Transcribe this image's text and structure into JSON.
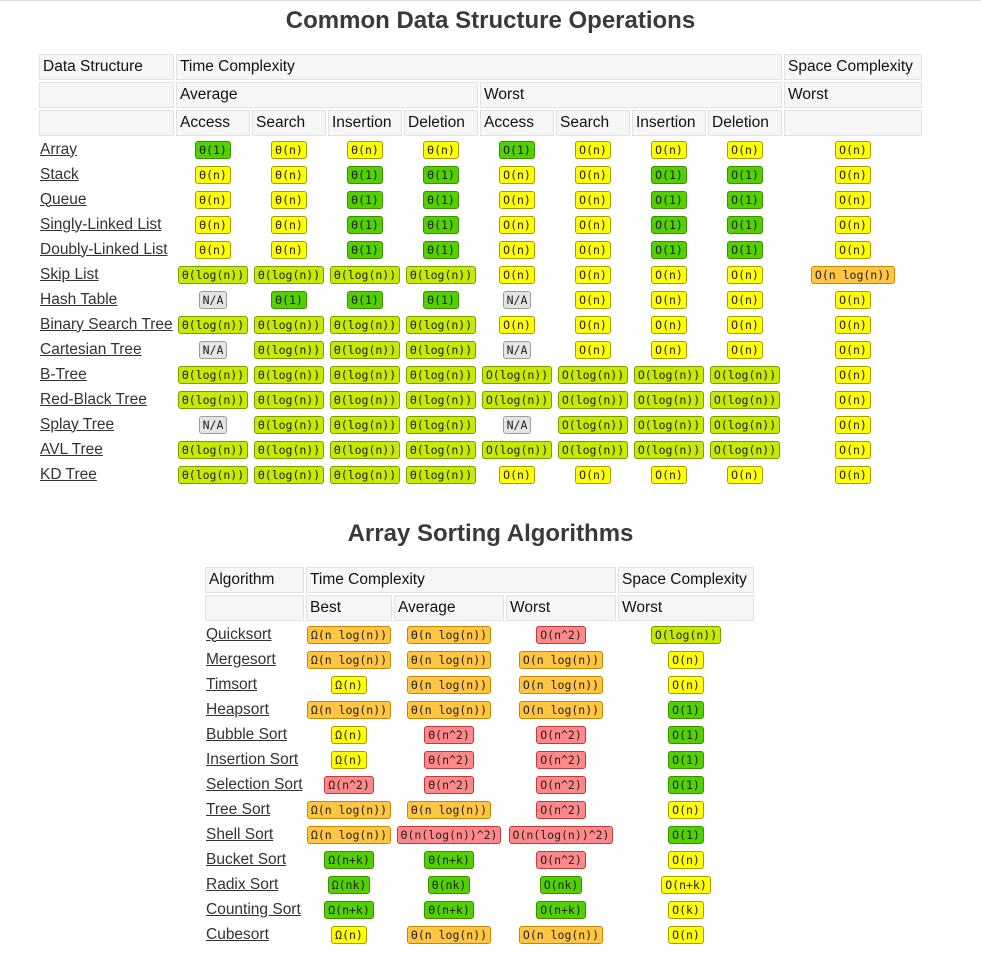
{
  "titles": {
    "ds": "Common Data Structure Operations",
    "sort": "Array Sorting Algorithms"
  },
  "colors": {
    "g": "#53d000",
    "lg": "#c8ea00",
    "y": "#ffff00",
    "o": "#ffc543",
    "r": "#ff8888",
    "gy": "#e4e4e4"
  },
  "ds_table": {
    "header1": [
      "Data Structure",
      "Time Complexity",
      "Space Complexity"
    ],
    "header2": [
      "",
      "Average",
      "Worst",
      "Worst"
    ],
    "header3": [
      "",
      "Access",
      "Search",
      "Insertion",
      "Deletion",
      "Access",
      "Search",
      "Insertion",
      "Deletion",
      ""
    ],
    "rows": [
      {
        "name": "Array",
        "cells": [
          [
            "Θ(1)",
            "g"
          ],
          [
            "Θ(n)",
            "y"
          ],
          [
            "Θ(n)",
            "y"
          ],
          [
            "Θ(n)",
            "y"
          ],
          [
            "O(1)",
            "g"
          ],
          [
            "O(n)",
            "y"
          ],
          [
            "O(n)",
            "y"
          ],
          [
            "O(n)",
            "y"
          ],
          [
            "O(n)",
            "y"
          ]
        ]
      },
      {
        "name": "Stack",
        "cells": [
          [
            "Θ(n)",
            "y"
          ],
          [
            "Θ(n)",
            "y"
          ],
          [
            "Θ(1)",
            "g"
          ],
          [
            "Θ(1)",
            "g"
          ],
          [
            "O(n)",
            "y"
          ],
          [
            "O(n)",
            "y"
          ],
          [
            "O(1)",
            "g"
          ],
          [
            "O(1)",
            "g"
          ],
          [
            "O(n)",
            "y"
          ]
        ]
      },
      {
        "name": "Queue",
        "cells": [
          [
            "Θ(n)",
            "y"
          ],
          [
            "Θ(n)",
            "y"
          ],
          [
            "Θ(1)",
            "g"
          ],
          [
            "Θ(1)",
            "g"
          ],
          [
            "O(n)",
            "y"
          ],
          [
            "O(n)",
            "y"
          ],
          [
            "O(1)",
            "g"
          ],
          [
            "O(1)",
            "g"
          ],
          [
            "O(n)",
            "y"
          ]
        ]
      },
      {
        "name": "Singly-Linked List",
        "cells": [
          [
            "Θ(n)",
            "y"
          ],
          [
            "Θ(n)",
            "y"
          ],
          [
            "Θ(1)",
            "g"
          ],
          [
            "Θ(1)",
            "g"
          ],
          [
            "O(n)",
            "y"
          ],
          [
            "O(n)",
            "y"
          ],
          [
            "O(1)",
            "g"
          ],
          [
            "O(1)",
            "g"
          ],
          [
            "O(n)",
            "y"
          ]
        ]
      },
      {
        "name": "Doubly-Linked List",
        "cells": [
          [
            "Θ(n)",
            "y"
          ],
          [
            "Θ(n)",
            "y"
          ],
          [
            "Θ(1)",
            "g"
          ],
          [
            "Θ(1)",
            "g"
          ],
          [
            "O(n)",
            "y"
          ],
          [
            "O(n)",
            "y"
          ],
          [
            "O(1)",
            "g"
          ],
          [
            "O(1)",
            "g"
          ],
          [
            "O(n)",
            "y"
          ]
        ]
      },
      {
        "name": "Skip List",
        "cells": [
          [
            "Θ(log(n))",
            "lg"
          ],
          [
            "Θ(log(n))",
            "lg"
          ],
          [
            "Θ(log(n))",
            "lg"
          ],
          [
            "Θ(log(n))",
            "lg"
          ],
          [
            "O(n)",
            "y"
          ],
          [
            "O(n)",
            "y"
          ],
          [
            "O(n)",
            "y"
          ],
          [
            "O(n)",
            "y"
          ],
          [
            "O(n log(n))",
            "o"
          ]
        ]
      },
      {
        "name": "Hash Table",
        "cells": [
          [
            "N/A",
            "gy"
          ],
          [
            "Θ(1)",
            "g"
          ],
          [
            "Θ(1)",
            "g"
          ],
          [
            "Θ(1)",
            "g"
          ],
          [
            "N/A",
            "gy"
          ],
          [
            "O(n)",
            "y"
          ],
          [
            "O(n)",
            "y"
          ],
          [
            "O(n)",
            "y"
          ],
          [
            "O(n)",
            "y"
          ]
        ]
      },
      {
        "name": "Binary Search Tree",
        "cells": [
          [
            "Θ(log(n))",
            "lg"
          ],
          [
            "Θ(log(n))",
            "lg"
          ],
          [
            "Θ(log(n))",
            "lg"
          ],
          [
            "Θ(log(n))",
            "lg"
          ],
          [
            "O(n)",
            "y"
          ],
          [
            "O(n)",
            "y"
          ],
          [
            "O(n)",
            "y"
          ],
          [
            "O(n)",
            "y"
          ],
          [
            "O(n)",
            "y"
          ]
        ]
      },
      {
        "name": "Cartesian Tree",
        "cells": [
          [
            "N/A",
            "gy"
          ],
          [
            "Θ(log(n))",
            "lg"
          ],
          [
            "Θ(log(n))",
            "lg"
          ],
          [
            "Θ(log(n))",
            "lg"
          ],
          [
            "N/A",
            "gy"
          ],
          [
            "O(n)",
            "y"
          ],
          [
            "O(n)",
            "y"
          ],
          [
            "O(n)",
            "y"
          ],
          [
            "O(n)",
            "y"
          ]
        ]
      },
      {
        "name": "B-Tree",
        "cells": [
          [
            "Θ(log(n))",
            "lg"
          ],
          [
            "Θ(log(n))",
            "lg"
          ],
          [
            "Θ(log(n))",
            "lg"
          ],
          [
            "Θ(log(n))",
            "lg"
          ],
          [
            "O(log(n))",
            "lg"
          ],
          [
            "O(log(n))",
            "lg"
          ],
          [
            "O(log(n))",
            "lg"
          ],
          [
            "O(log(n))",
            "lg"
          ],
          [
            "O(n)",
            "y"
          ]
        ]
      },
      {
        "name": "Red-Black Tree",
        "cells": [
          [
            "Θ(log(n))",
            "lg"
          ],
          [
            "Θ(log(n))",
            "lg"
          ],
          [
            "Θ(log(n))",
            "lg"
          ],
          [
            "Θ(log(n))",
            "lg"
          ],
          [
            "O(log(n))",
            "lg"
          ],
          [
            "O(log(n))",
            "lg"
          ],
          [
            "O(log(n))",
            "lg"
          ],
          [
            "O(log(n))",
            "lg"
          ],
          [
            "O(n)",
            "y"
          ]
        ]
      },
      {
        "name": "Splay Tree",
        "cells": [
          [
            "N/A",
            "gy"
          ],
          [
            "Θ(log(n))",
            "lg"
          ],
          [
            "Θ(log(n))",
            "lg"
          ],
          [
            "Θ(log(n))",
            "lg"
          ],
          [
            "N/A",
            "gy"
          ],
          [
            "O(log(n))",
            "lg"
          ],
          [
            "O(log(n))",
            "lg"
          ],
          [
            "O(log(n))",
            "lg"
          ],
          [
            "O(n)",
            "y"
          ]
        ]
      },
      {
        "name": "AVL Tree",
        "cells": [
          [
            "Θ(log(n))",
            "lg"
          ],
          [
            "Θ(log(n))",
            "lg"
          ],
          [
            "Θ(log(n))",
            "lg"
          ],
          [
            "Θ(log(n))",
            "lg"
          ],
          [
            "O(log(n))",
            "lg"
          ],
          [
            "O(log(n))",
            "lg"
          ],
          [
            "O(log(n))",
            "lg"
          ],
          [
            "O(log(n))",
            "lg"
          ],
          [
            "O(n)",
            "y"
          ]
        ]
      },
      {
        "name": "KD Tree",
        "cells": [
          [
            "Θ(log(n))",
            "lg"
          ],
          [
            "Θ(log(n))",
            "lg"
          ],
          [
            "Θ(log(n))",
            "lg"
          ],
          [
            "Θ(log(n))",
            "lg"
          ],
          [
            "O(n)",
            "y"
          ],
          [
            "O(n)",
            "y"
          ],
          [
            "O(n)",
            "y"
          ],
          [
            "O(n)",
            "y"
          ],
          [
            "O(n)",
            "y"
          ]
        ]
      }
    ]
  },
  "sort_table": {
    "header1": [
      "Algorithm",
      "Time Complexity",
      "Space Complexity"
    ],
    "header2": [
      "",
      "Best",
      "Average",
      "Worst",
      "Worst"
    ],
    "rows": [
      {
        "name": "Quicksort",
        "cells": [
          [
            "Ω(n log(n))",
            "o"
          ],
          [
            "Θ(n log(n))",
            "o"
          ],
          [
            "O(n^2)",
            "r"
          ],
          [
            "O(log(n))",
            "lg"
          ]
        ]
      },
      {
        "name": "Mergesort",
        "cells": [
          [
            "Ω(n log(n))",
            "o"
          ],
          [
            "Θ(n log(n))",
            "o"
          ],
          [
            "O(n log(n))",
            "o"
          ],
          [
            "O(n)",
            "y"
          ]
        ]
      },
      {
        "name": "Timsort",
        "cells": [
          [
            "Ω(n)",
            "y"
          ],
          [
            "Θ(n log(n))",
            "o"
          ],
          [
            "O(n log(n))",
            "o"
          ],
          [
            "O(n)",
            "y"
          ]
        ]
      },
      {
        "name": "Heapsort",
        "cells": [
          [
            "Ω(n log(n))",
            "o"
          ],
          [
            "Θ(n log(n))",
            "o"
          ],
          [
            "O(n log(n))",
            "o"
          ],
          [
            "O(1)",
            "g"
          ]
        ]
      },
      {
        "name": "Bubble Sort",
        "cells": [
          [
            "Ω(n)",
            "y"
          ],
          [
            "Θ(n^2)",
            "r"
          ],
          [
            "O(n^2)",
            "r"
          ],
          [
            "O(1)",
            "g"
          ]
        ]
      },
      {
        "name": "Insertion Sort",
        "cells": [
          [
            "Ω(n)",
            "y"
          ],
          [
            "Θ(n^2)",
            "r"
          ],
          [
            "O(n^2)",
            "r"
          ],
          [
            "O(1)",
            "g"
          ]
        ]
      },
      {
        "name": "Selection Sort",
        "cells": [
          [
            "Ω(n^2)",
            "r"
          ],
          [
            "Θ(n^2)",
            "r"
          ],
          [
            "O(n^2)",
            "r"
          ],
          [
            "O(1)",
            "g"
          ]
        ]
      },
      {
        "name": "Tree Sort",
        "cells": [
          [
            "Ω(n log(n))",
            "o"
          ],
          [
            "Θ(n log(n))",
            "o"
          ],
          [
            "O(n^2)",
            "r"
          ],
          [
            "O(n)",
            "y"
          ]
        ]
      },
      {
        "name": "Shell Sort",
        "cells": [
          [
            "Ω(n log(n))",
            "o"
          ],
          [
            "Θ(n(log(n))^2)",
            "r"
          ],
          [
            "O(n(log(n))^2)",
            "r"
          ],
          [
            "O(1)",
            "g"
          ]
        ]
      },
      {
        "name": "Bucket Sort",
        "cells": [
          [
            "Ω(n+k)",
            "g"
          ],
          [
            "Θ(n+k)",
            "g"
          ],
          [
            "O(n^2)",
            "r"
          ],
          [
            "O(n)",
            "y"
          ]
        ]
      },
      {
        "name": "Radix Sort",
        "cells": [
          [
            "Ω(nk)",
            "g"
          ],
          [
            "Θ(nk)",
            "g"
          ],
          [
            "O(nk)",
            "g"
          ],
          [
            "O(n+k)",
            "y"
          ]
        ]
      },
      {
        "name": "Counting Sort",
        "cells": [
          [
            "Ω(n+k)",
            "g"
          ],
          [
            "Θ(n+k)",
            "g"
          ],
          [
            "O(n+k)",
            "g"
          ],
          [
            "O(k)",
            "y"
          ]
        ]
      },
      {
        "name": "Cubesort",
        "cells": [
          [
            "Ω(n)",
            "y"
          ],
          [
            "Θ(n log(n))",
            "o"
          ],
          [
            "O(n log(n))",
            "o"
          ],
          [
            "O(n)",
            "y"
          ]
        ]
      }
    ]
  }
}
